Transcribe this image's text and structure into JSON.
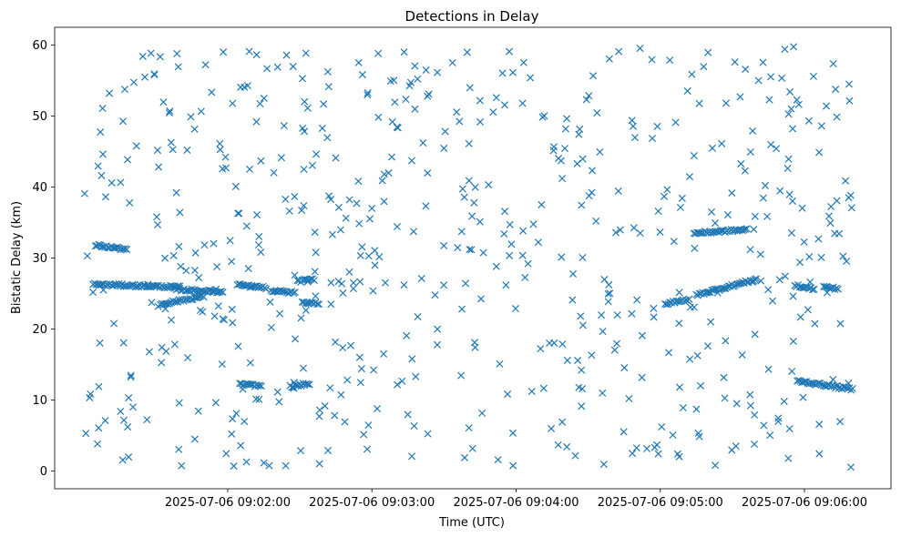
{
  "chart_data": {
    "type": "scatter",
    "title": "Detections in Delay",
    "xlabel": "Time (UTC)",
    "ylabel": "Bistatic Delay (km)",
    "marker": "x",
    "color": "#1f77b4",
    "grid": false,
    "legend": "none",
    "xlim": [
      "2025-07-06 09:00:48",
      "2025-07-06 09:06:36"
    ],
    "ylim": [
      -2.5,
      62.5
    ],
    "x_ticks": [
      "2025-07-06 09:02:00",
      "2025-07-06 09:03:00",
      "2025-07-06 09:04:00",
      "2025-07-06 09:05:00",
      "2025-07-06 09:06:00"
    ],
    "y_ticks": [
      0,
      10,
      20,
      30,
      40,
      50,
      60
    ],
    "time_range": [
      "2025-07-06 09:01:00",
      "2025-07-06 09:06:20"
    ],
    "tracks": [
      {
        "start": "2025-07-06 09:01:04",
        "end": "2025-07-06 09:01:40",
        "y_start": 26.3,
        "y_end": 25.9
      },
      {
        "start": "2025-07-06 09:01:38",
        "end": "2025-07-06 09:01:58",
        "y_start": 25.6,
        "y_end": 25.2
      },
      {
        "start": "2025-07-06 09:01:32",
        "end": "2025-07-06 09:01:50",
        "y_start": 23.5,
        "y_end": 24.6
      },
      {
        "start": "2025-07-06 09:01:05",
        "end": "2025-07-06 09:01:18",
        "y_start": 31.8,
        "y_end": 31.2
      },
      {
        "start": "2025-07-06 09:02:04",
        "end": "2025-07-06 09:02:16",
        "y_start": 26.2,
        "y_end": 25.8
      },
      {
        "start": "2025-07-06 09:02:05",
        "end": "2025-07-06 09:02:14",
        "y_start": 12.2,
        "y_end": 12.0
      },
      {
        "start": "2025-07-06 09:02:26",
        "end": "2025-07-06 09:02:34",
        "y_start": 11.9,
        "y_end": 12.3
      },
      {
        "start": "2025-07-06 09:02:29",
        "end": "2025-07-06 09:02:36",
        "y_start": 26.7,
        "y_end": 27.0
      },
      {
        "start": "2025-07-06 09:02:31",
        "end": "2025-07-06 09:02:38",
        "y_start": 23.8,
        "y_end": 23.6
      },
      {
        "start": "2025-07-06 09:02:18",
        "end": "2025-07-06 09:02:28",
        "y_start": 25.4,
        "y_end": 25.1
      },
      {
        "start": "2025-07-06 09:05:15",
        "end": "2025-07-06 09:05:40",
        "y_start": 24.8,
        "y_end": 27.0
      },
      {
        "start": "2025-07-06 09:05:14",
        "end": "2025-07-06 09:05:36",
        "y_start": 33.5,
        "y_end": 34.0
      },
      {
        "start": "2025-07-06 09:05:57",
        "end": "2025-07-06 09:06:20",
        "y_start": 12.7,
        "y_end": 11.5
      },
      {
        "start": "2025-07-06 09:05:56",
        "end": "2025-07-06 09:06:04",
        "y_start": 26.2,
        "y_end": 25.6
      },
      {
        "start": "2025-07-06 09:06:08",
        "end": "2025-07-06 09:06:14",
        "y_start": 25.9,
        "y_end": 25.7
      },
      {
        "start": "2025-07-06 09:05:02",
        "end": "2025-07-06 09:05:12",
        "y_start": 23.5,
        "y_end": 24.2
      }
    ],
    "scattered_detections": 600
  }
}
